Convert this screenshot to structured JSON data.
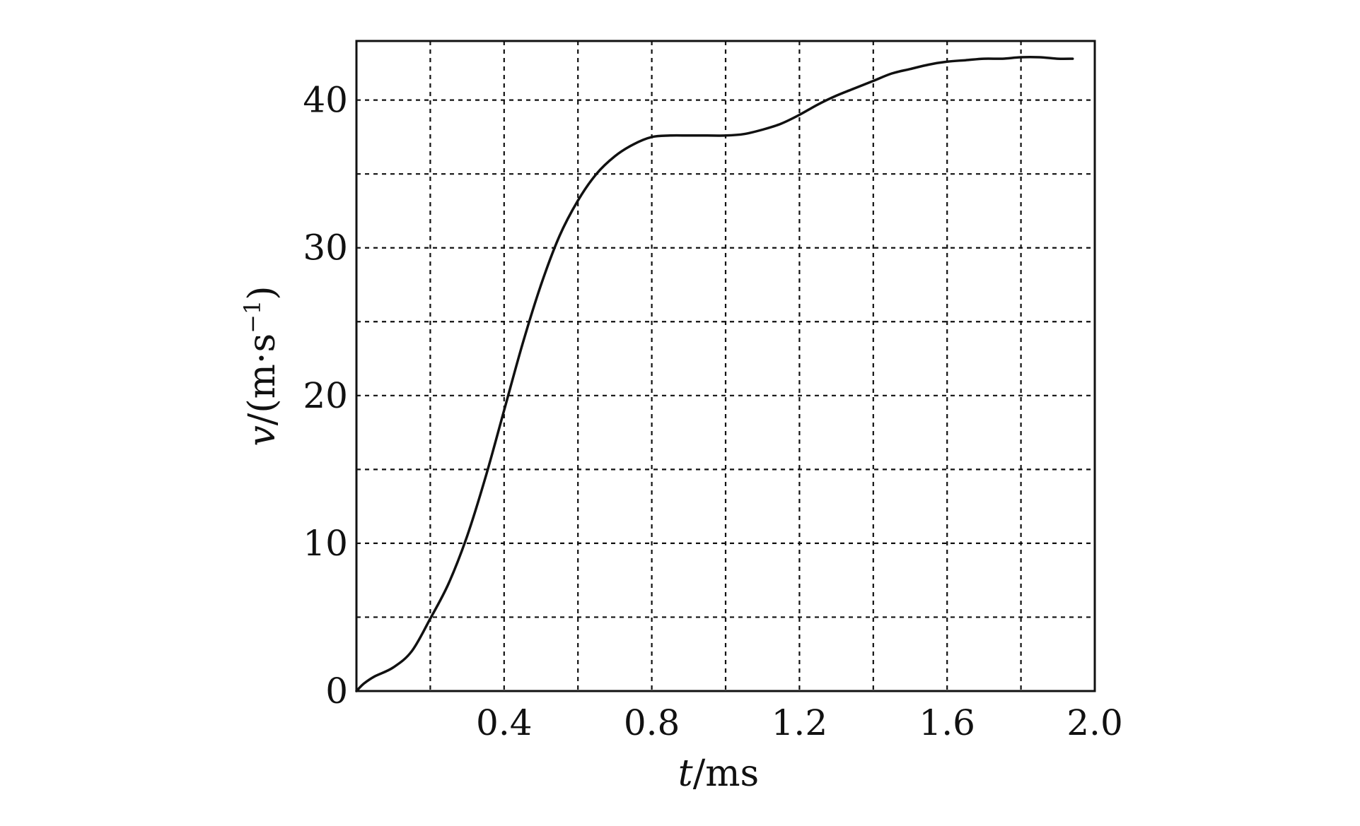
{
  "chart_data": {
    "type": "line",
    "title": "",
    "xlabel": {
      "italic": "t",
      "rest": "/ms"
    },
    "ylabel": {
      "italic": "v",
      "rest": "/(m·s",
      "superscript": "−1",
      "close": ")"
    },
    "xlim": [
      0,
      2.0
    ],
    "ylim": [
      0,
      44
    ],
    "xticks": [
      0.4,
      0.8,
      1.2,
      1.6,
      2.0
    ],
    "xtick_labels": [
      "0.4",
      "0.8",
      "1.2",
      "1.6",
      "2.0"
    ],
    "yticks": [
      0,
      10,
      20,
      30,
      40
    ],
    "ytick_labels": [
      "0",
      "10",
      "20",
      "30",
      "40"
    ],
    "grid": true,
    "grid_style": "dashed",
    "grid_x": [
      0.2,
      0.4,
      0.6,
      0.8,
      1.0,
      1.2,
      1.4,
      1.6,
      1.8
    ],
    "grid_y": [
      5,
      10,
      15,
      20,
      25,
      30,
      35,
      40
    ],
    "colors": {
      "line": "#111111",
      "background": "#ffffff"
    },
    "series": [
      {
        "x": [
          0.0,
          0.02,
          0.05,
          0.1,
          0.15,
          0.2,
          0.25,
          0.3,
          0.35,
          0.4,
          0.45,
          0.5,
          0.55,
          0.6,
          0.65,
          0.7,
          0.75,
          0.8,
          0.85,
          0.9,
          0.95,
          1.0,
          1.05,
          1.1,
          1.15,
          1.2,
          1.25,
          1.3,
          1.35,
          1.4,
          1.45,
          1.5,
          1.55,
          1.6,
          1.65,
          1.7,
          1.75,
          1.8,
          1.85,
          1.9,
          1.94
        ],
        "y": [
          0.0,
          0.5,
          1.0,
          1.6,
          2.7,
          4.9,
          7.3,
          10.5,
          14.5,
          19.0,
          23.5,
          27.5,
          30.8,
          33.2,
          35.0,
          36.2,
          37.0,
          37.5,
          37.6,
          37.6,
          37.6,
          37.6,
          37.7,
          38.0,
          38.4,
          39.0,
          39.7,
          40.3,
          40.8,
          41.3,
          41.8,
          42.1,
          42.4,
          42.6,
          42.7,
          42.8,
          42.8,
          42.9,
          42.9,
          42.8,
          42.8
        ]
      }
    ]
  }
}
